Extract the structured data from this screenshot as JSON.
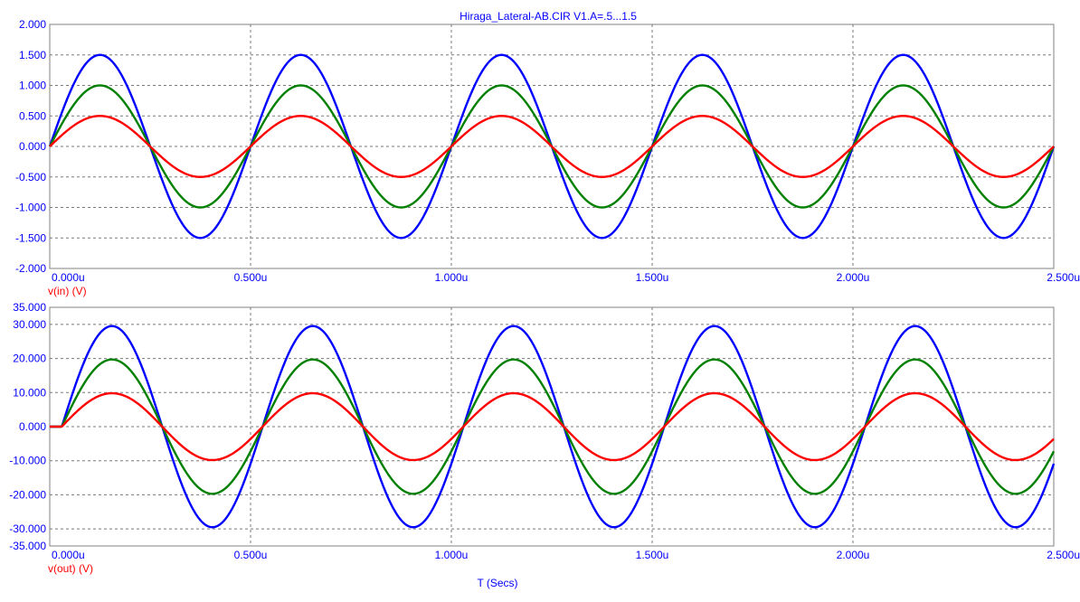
{
  "title": "Hiraga_Lateral-AB.CIR V1.A=.5...1.5",
  "xlabel": "T (Secs)",
  "colors": {
    "axis_text": "#0000ff",
    "label_text": "#ff0000",
    "grid": "#7a7a7a",
    "background": "#ffffff"
  },
  "chart_data": [
    {
      "type": "line",
      "name": "input",
      "ylabel": "v(in) (V)",
      "xlim": [
        0,
        2.5
      ],
      "ylim": [
        -2,
        2
      ],
      "x_ticks": [
        "0.000u",
        "0.500u",
        "1.000u",
        "1.500u",
        "2.000u",
        "2.500u"
      ],
      "y_ticks": [
        "2.000",
        "1.500",
        "1.000",
        "0.500",
        "0.000",
        "-0.500",
        "-1.000",
        "-1.500",
        "-2.000"
      ],
      "y_tick_values": [
        2,
        1.5,
        1,
        0.5,
        0,
        -0.5,
        -1,
        -1.5,
        -2
      ],
      "frequency_MHz": 2,
      "phase_delay_us": 0,
      "grid": true,
      "series": [
        {
          "amplitude": 1.5,
          "color": "#0000ff"
        },
        {
          "amplitude": 1.0,
          "color": "#008000"
        },
        {
          "amplitude": 0.5,
          "color": "#ff0000"
        }
      ]
    },
    {
      "type": "line",
      "name": "output",
      "ylabel": "v(out) (V)",
      "xlim": [
        0,
        2.5
      ],
      "ylim": [
        -35,
        35
      ],
      "x_ticks": [
        "0.000u",
        "0.500u",
        "1.000u",
        "1.500u",
        "2.000u",
        "2.500u"
      ],
      "y_ticks": [
        "35.000",
        "30.000",
        "20.000",
        "10.000",
        "0.000",
        "-10.000",
        "-20.000",
        "-30.000",
        "-35.000"
      ],
      "y_tick_values": [
        35,
        30,
        20,
        10,
        0,
        -10,
        -20,
        -30,
        -35
      ],
      "frequency_MHz": 2,
      "phase_delay_us": 0.03,
      "grid": true,
      "series": [
        {
          "amplitude": 29.5,
          "color": "#0000ff"
        },
        {
          "amplitude": 19.7,
          "color": "#008000"
        },
        {
          "amplitude": 9.8,
          "color": "#ff0000"
        }
      ]
    }
  ]
}
